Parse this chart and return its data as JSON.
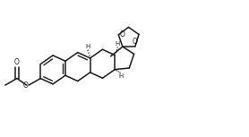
{
  "bg_color": "#ffffff",
  "line_color": "#1a1a1a",
  "lw": 1.1,
  "figsize": [
    2.78,
    1.53
  ],
  "dpi": 100,
  "xlim": [
    0,
    100
  ],
  "ylim": [
    0,
    55
  ]
}
